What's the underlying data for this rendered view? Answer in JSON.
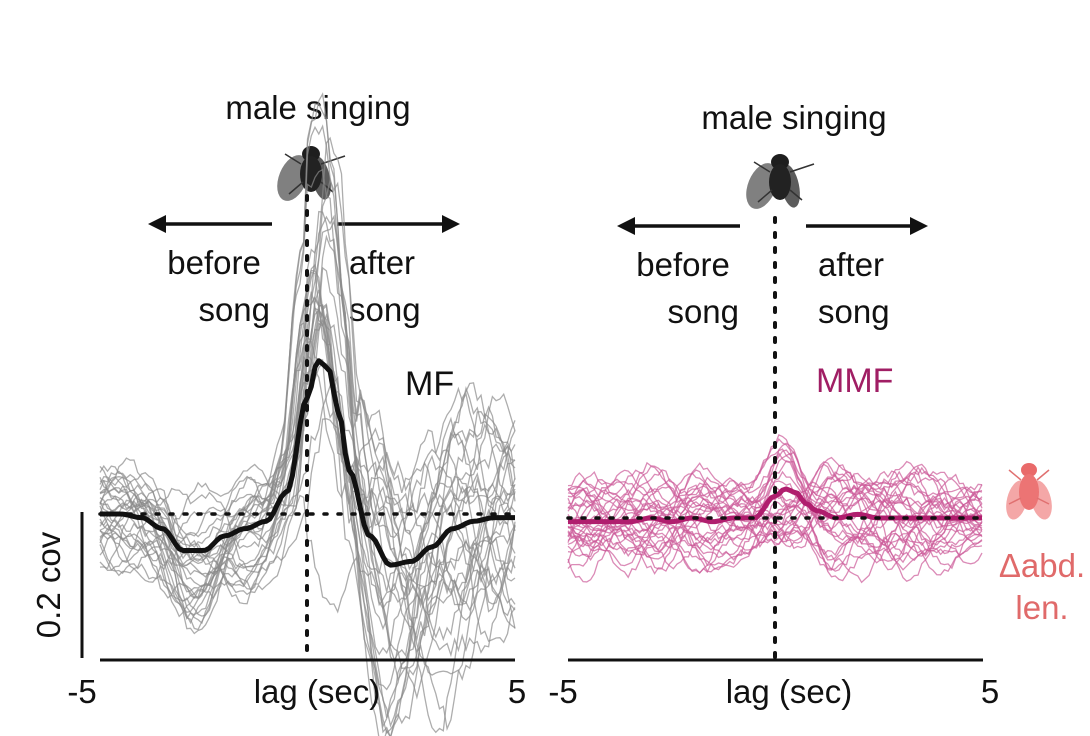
{
  "chart_data": [
    {
      "type": "line",
      "panel_label": "MF",
      "event_label": "male singing",
      "before_label": [
        "before",
        "song"
      ],
      "after_label": [
        "after",
        "song"
      ],
      "xlabel": "lag (sec)",
      "x_tick_labels": [
        "-5",
        "5"
      ],
      "xlim": [
        -5,
        5
      ],
      "ylim": [
        -0.29,
        0.52
      ],
      "scale_bar_label": "0.2 cov",
      "scale_bar_value": 0.2,
      "series_color": "#111111",
      "thin_color": "#8a8a8a",
      "n_thin_traces": 30,
      "spread_before": 0.045,
      "spread_after": 0.12,
      "mean_trace": {
        "x": [
          -5,
          -4.5,
          -4,
          -3.5,
          -3,
          -2.5,
          -2,
          -1.5,
          -1,
          -0.5,
          0,
          0.25,
          0.5,
          0.75,
          1,
          1.5,
          2,
          2.5,
          3,
          3.5,
          4,
          4.5,
          5
        ],
        "y": [
          0.0,
          0.0,
          -0.005,
          -0.02,
          -0.05,
          -0.05,
          -0.03,
          -0.02,
          -0.01,
          0.03,
          0.16,
          0.21,
          0.2,
          0.14,
          0.06,
          -0.03,
          -0.07,
          -0.065,
          -0.045,
          -0.02,
          -0.01,
          -0.005,
          -0.005
        ]
      }
    },
    {
      "type": "line",
      "panel_label": "MMF",
      "event_label": "male singing",
      "before_label": [
        "before",
        "song"
      ],
      "after_label": [
        "after",
        "song"
      ],
      "xlabel": "lag (sec)",
      "x_tick_labels": [
        "-5",
        "5"
      ],
      "xlim": [
        -5,
        5
      ],
      "ylim": [
        -0.29,
        0.52
      ],
      "series_color": "#b01e6e",
      "thin_color": "#cc5a98",
      "n_thin_traces": 30,
      "spread_before": 0.04,
      "spread_after": 0.045,
      "mean_trace": {
        "x": [
          -5,
          -4.5,
          -4,
          -3.5,
          -3,
          -2.5,
          -2,
          -1.5,
          -1,
          -0.5,
          0,
          0.25,
          0.5,
          0.75,
          1,
          1.5,
          2,
          2.5,
          3,
          3.5,
          4,
          4.5,
          5
        ],
        "y": [
          -0.005,
          -0.005,
          -0.005,
          -0.005,
          0.0,
          -0.005,
          0.0,
          -0.005,
          0.0,
          0.0,
          0.03,
          0.04,
          0.035,
          0.02,
          0.01,
          0.0,
          0.005,
          0.0,
          0.0,
          0.0,
          0.0,
          0.0,
          0.0
        ]
      }
    }
  ],
  "legend": {
    "line1": "Δabd.",
    "line2": "len.",
    "color": "#e06a6a"
  }
}
